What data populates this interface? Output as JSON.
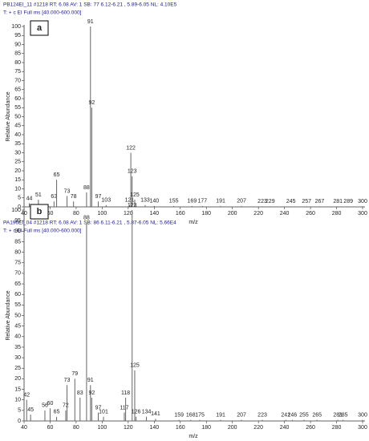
{
  "chart_data": [
    {
      "type": "bar",
      "title": "PB124EI_11 #1218   RT: 6.08   AV: 1   SB: 77   6.12-6.21 , 5.89-6.05   NL: 4.10E5",
      "subtitle": "T: + c EI Full ms [40.000-600.000]",
      "panel_label": "a",
      "xlabel": "m/z",
      "ylabel": "Relative Abundance",
      "color": "#666666",
      "x": [
        44,
        51,
        63,
        65,
        73,
        78,
        88,
        91,
        92,
        97,
        103,
        121,
        122,
        123,
        125,
        133,
        140,
        155,
        169,
        177,
        191,
        207,
        223,
        229,
        245,
        257,
        267,
        281,
        289,
        300
      ],
      "values": [
        2,
        4,
        3,
        15,
        6,
        3,
        8,
        100,
        55,
        3,
        1,
        1,
        30,
        17,
        4,
        1,
        0.5,
        0.5,
        0.5,
        0.5,
        0.5,
        0.5,
        0.3,
        0.3,
        0.3,
        0.3,
        0.3,
        0.3,
        0.3,
        0.3
      ],
      "xlim": [
        40,
        300
      ],
      "ylim": [
        0,
        100
      ],
      "xticks": [
        40,
        60,
        80,
        100,
        120,
        140,
        160,
        180,
        200,
        220,
        240,
        260,
        280,
        300
      ],
      "yticks": [
        0,
        5,
        10,
        15,
        20,
        25,
        30,
        35,
        40,
        45,
        50,
        55,
        60,
        65,
        70,
        75,
        80,
        85,
        90,
        95,
        100
      ]
    },
    {
      "type": "bar",
      "title": "PA196EI_04 #1218   RT: 6.08   AV: 1   SB: 86   6.11-6.21 , 5.87-6.05   NL: 5.66E4",
      "subtitle": "T: + c EI Full ms [40.000-600.000]",
      "panel_label": "b",
      "xlabel": "m/z",
      "ylabel": "Relative Abundance",
      "color": "#666666",
      "x": [
        42,
        45,
        56,
        60,
        65,
        72,
        73,
        79,
        83,
        88,
        91,
        92,
        97,
        101,
        117,
        118,
        123,
        125,
        126,
        134,
        141,
        159,
        168,
        175,
        191,
        207,
        223,
        241,
        246,
        255,
        265,
        281,
        285,
        300
      ],
      "values": [
        10,
        3,
        5,
        6,
        2,
        5,
        17,
        20,
        11,
        94,
        17,
        11,
        4,
        2,
        4,
        11,
        100,
        24,
        2,
        2,
        1,
        0.5,
        0.5,
        0.5,
        0.5,
        0.5,
        0.5,
        0.5,
        0.5,
        0.5,
        0.5,
        0.5,
        0.5,
        0.5
      ],
      "xlim": [
        40,
        300
      ],
      "ylim": [
        0,
        100
      ],
      "xticks": [
        40,
        60,
        80,
        100,
        120,
        140,
        160,
        180,
        200,
        220,
        240,
        260,
        280,
        300
      ],
      "yticks": [
        0,
        5,
        10,
        15,
        20,
        25,
        30,
        35,
        40,
        45,
        50,
        55,
        60,
        65,
        70,
        75,
        80,
        85,
        90,
        95,
        100
      ]
    }
  ]
}
